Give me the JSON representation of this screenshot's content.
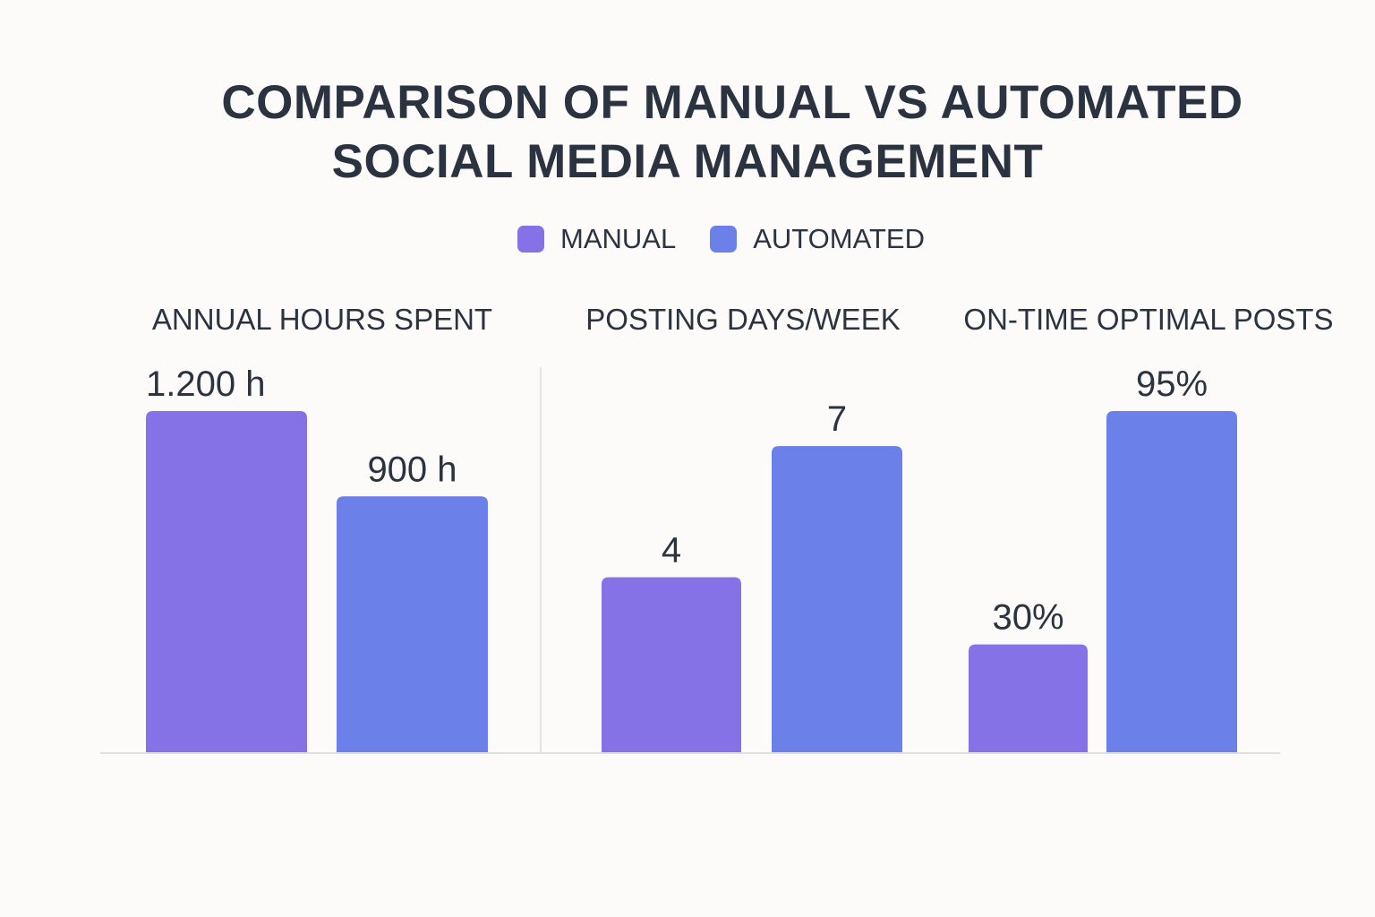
{
  "chart_data": {
    "type": "bar",
    "title_lines": [
      "COMPARISON OF MANUAL VS AUTOMATED",
      "SOCIAL MEDIA MANAGEMENT"
    ],
    "legend": [
      {
        "name": "MANUAL",
        "color": "#8572e6"
      },
      {
        "name": "AUTOMATED",
        "color": "#6b80e8"
      }
    ],
    "legend_position": "top-center",
    "grid": false,
    "panels": [
      {
        "title": "ANNUAL HOURS SPENT",
        "ylim": [
          0,
          1200
        ],
        "series": [
          {
            "name": "MANUAL",
            "value": 1200,
            "label": "1.200 h"
          },
          {
            "name": "AUTOMATED",
            "value": 900,
            "label": "900 h"
          }
        ]
      },
      {
        "title": "POSTING DAYS/WEEK",
        "ylim": [
          0,
          7.8
        ],
        "series": [
          {
            "name": "MANUAL",
            "value": 4,
            "label": "4"
          },
          {
            "name": "AUTOMATED",
            "value": 7,
            "label": "7"
          }
        ]
      },
      {
        "title": "ON-TIME OPTIMAL POSTS",
        "ylim": [
          0,
          95
        ],
        "series": [
          {
            "name": "MANUAL",
            "value": 30,
            "label": "30%"
          },
          {
            "name": "AUTOMATED",
            "value": 95,
            "label": "95%"
          }
        ]
      }
    ]
  }
}
